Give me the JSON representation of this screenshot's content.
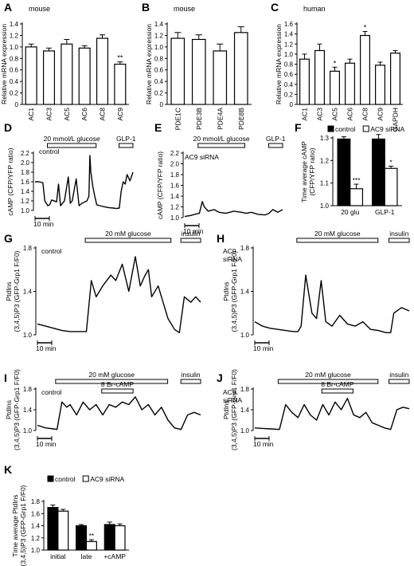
{
  "panels": [
    {
      "id": "A",
      "type": "bar",
      "title": "mouse",
      "ylabel": "Relative mRNA expression",
      "ylim": [
        0,
        1.4
      ],
      "yticks": [
        "0",
        "0.2",
        "0.4",
        "0.6",
        "0.8",
        "1.0",
        "1.2",
        "1.4"
      ],
      "categories": [
        "AC1",
        "AC3",
        "AC5",
        "AC6",
        "AC8",
        "AC9"
      ],
      "values": [
        1.0,
        0.93,
        1.05,
        0.98,
        1.15,
        0.7
      ],
      "errors": [
        0.05,
        0.05,
        0.08,
        0.04,
        0.06,
        0.04
      ],
      "stars": [
        "",
        "",
        "",
        "",
        "",
        "**"
      ]
    },
    {
      "id": "B",
      "type": "bar",
      "title": "mouse",
      "ylabel": "Relative mRNA expression",
      "ylim": [
        0,
        1.4
      ],
      "yticks": [
        "0",
        "0.2",
        "0.4",
        "0.6",
        "0.8",
        "1.0",
        "1.2",
        "1.4"
      ],
      "categories": [
        "PDE1C",
        "PDE3B",
        "PDE4A",
        "PDE8B"
      ],
      "values": [
        1.15,
        1.13,
        0.93,
        1.25
      ],
      "errors": [
        0.1,
        0.08,
        0.12,
        0.1
      ],
      "stars": [
        "",
        "",
        "",
        ""
      ]
    },
    {
      "id": "C",
      "type": "bar",
      "title": "human",
      "ylabel": "Relative mRNA expression",
      "ylim": [
        0,
        1.6
      ],
      "yticks": [
        "0",
        "0.2",
        "0.4",
        "0.6",
        "0.8",
        "1.0",
        "1.2",
        "1.4",
        "1.6"
      ],
      "categories": [
        "AC1",
        "AC3",
        "AC5",
        "AC6",
        "AC8",
        "AC9",
        "GAPDH"
      ],
      "values": [
        0.9,
        1.07,
        0.66,
        0.82,
        1.37,
        0.78,
        1.02
      ],
      "errors": [
        0.1,
        0.13,
        0.08,
        0.08,
        0.08,
        0.06,
        0.05
      ],
      "stars": [
        "",
        "",
        "*",
        "",
        "*",
        "",
        ""
      ]
    },
    {
      "id": "D",
      "type": "line",
      "ylabel": "cAMP (CFP/YFP ratio)",
      "ylim": [
        1.0,
        2.2
      ],
      "yticks": [
        "1.0",
        "1.2",
        "1.4",
        "1.6",
        "1.8",
        "2.0",
        "2.2"
      ],
      "label": "control",
      "scale": "10 min",
      "stimuli": [
        {
          "label": "20 mmol/L glucose",
          "from": 0.14,
          "to": 0.63
        },
        {
          "label": "GLP-1",
          "from": 0.86,
          "to": 1.0
        }
      ],
      "x": [
        0,
        0.04,
        0.08,
        0.1,
        0.13,
        0.15,
        0.17,
        0.22,
        0.24,
        0.26,
        0.3,
        0.34,
        0.36,
        0.38,
        0.42,
        0.45,
        0.48,
        0.53,
        0.55,
        0.56,
        0.57,
        0.59,
        0.61,
        0.63,
        0.66,
        0.7,
        0.75,
        0.8,
        0.83,
        0.86,
        0.88,
        0.9,
        0.92,
        0.94,
        0.97,
        1.0
      ],
      "y": [
        1.6,
        1.6,
        1.58,
        1.2,
        1.1,
        1.12,
        1.22,
        1.18,
        1.55,
        1.1,
        1.2,
        1.7,
        1.15,
        1.2,
        1.66,
        1.1,
        1.15,
        1.2,
        1.3,
        2.15,
        1.8,
        1.5,
        1.3,
        1.12,
        1.1,
        1.08,
        1.06,
        1.05,
        1.04,
        1.05,
        1.4,
        1.6,
        1.55,
        1.75,
        1.62,
        1.8
      ]
    },
    {
      "id": "E",
      "type": "line",
      "ylabel": "cAMP (CFP/YFP ratio)",
      "ylim": [
        1.0,
        2.2
      ],
      "yticks": [
        "1.0",
        "1.2",
        "1.4",
        "1.6",
        "1.8",
        "2.0",
        "2.2"
      ],
      "label": "AC9 siRNA",
      "scale": "10 min",
      "stimuli": [
        {
          "label": "20 mmol/L glucose",
          "from": 0.15,
          "to": 0.62
        },
        {
          "label": "GLP-1",
          "from": 0.86,
          "to": 1.0
        }
      ],
      "x": [
        0,
        0.06,
        0.1,
        0.15,
        0.18,
        0.2,
        0.24,
        0.3,
        0.35,
        0.42,
        0.5,
        0.58,
        0.63,
        0.68,
        0.75,
        0.82,
        0.86,
        0.9,
        0.95,
        1.0
      ],
      "y": [
        1.02,
        1.04,
        1.06,
        1.08,
        1.3,
        1.2,
        1.12,
        1.15,
        1.1,
        1.08,
        1.12,
        1.1,
        1.08,
        1.1,
        1.06,
        1.05,
        1.08,
        1.15,
        1.1,
        1.15
      ]
    },
    {
      "id": "F",
      "type": "bar",
      "ylabel": "Time average cAMP (CFP/YFP ratio)",
      "ylim": [
        1.0,
        1.3
      ],
      "yticks": [
        "1.0",
        "1.1",
        "1.2",
        "1.3"
      ],
      "categories": [
        "20 glu",
        "GLP-1"
      ],
      "series": [
        {
          "name": "control",
          "values": [
            1.295,
            1.295
          ],
          "errors": [
            0.01,
            0.02
          ],
          "stars": [
            "",
            ""
          ]
        },
        {
          "name": "AC9 siRNA",
          "values": [
            1.075,
            1.165
          ],
          "errors": [
            0.02,
            0.01
          ],
          "stars": [
            "***",
            "*"
          ]
        }
      ]
    },
    {
      "id": "G",
      "type": "line",
      "ylabel": "PtdIns(3,4,5)P3 (GFP-Grp1 F/F0)",
      "ylim": [
        1.0,
        1.8
      ],
      "yticks": [
        "1.0",
        "1.4",
        "1.8"
      ],
      "label": "control",
      "scale": "10 min",
      "stimuli": [
        {
          "label": "20 mM glucose",
          "from": 0.3,
          "to": 0.82
        },
        {
          "label": "insulin",
          "from": 0.88,
          "to": 1.0
        }
      ],
      "x": [
        0,
        0.05,
        0.1,
        0.15,
        0.2,
        0.25,
        0.3,
        0.33,
        0.36,
        0.4,
        0.45,
        0.48,
        0.52,
        0.56,
        0.6,
        0.63,
        0.66,
        0.68,
        0.7,
        0.74,
        0.77,
        0.8,
        0.84,
        0.87,
        0.9,
        0.94,
        0.97,
        1.0
      ],
      "y": [
        1.1,
        1.08,
        1.06,
        1.04,
        1.03,
        1.03,
        1.03,
        1.5,
        1.35,
        1.45,
        1.55,
        1.5,
        1.65,
        1.4,
        1.72,
        1.45,
        1.55,
        1.6,
        1.35,
        1.45,
        1.3,
        1.15,
        1.05,
        1.02,
        1.35,
        1.3,
        1.35,
        1.3
      ]
    },
    {
      "id": "H",
      "type": "line",
      "ylabel": "PtdIns(3,4,5)P3 (GFP-Grp1 F/F0)",
      "ylim": [
        1.0,
        1.8
      ],
      "yticks": [
        "1.0",
        "1.4",
        "1.8"
      ],
      "label": "AC9 siRNA",
      "scale": "10 min",
      "stimuli": [
        {
          "label": "20 mM glucose",
          "from": 0.28,
          "to": 0.8
        },
        {
          "label": "insulin",
          "from": 0.87,
          "to": 1.0
        }
      ],
      "x": [
        0,
        0.05,
        0.1,
        0.15,
        0.2,
        0.25,
        0.28,
        0.3,
        0.33,
        0.37,
        0.4,
        0.43,
        0.46,
        0.5,
        0.55,
        0.6,
        0.65,
        0.7,
        0.75,
        0.8,
        0.85,
        0.88,
        0.9,
        0.95,
        1.0
      ],
      "y": [
        1.12,
        1.08,
        1.06,
        1.05,
        1.04,
        1.03,
        1.03,
        1.08,
        1.55,
        1.2,
        1.15,
        1.5,
        1.12,
        1.08,
        1.18,
        1.1,
        1.08,
        1.12,
        1.05,
        1.04,
        1.02,
        1.02,
        1.2,
        1.25,
        1.22
      ]
    },
    {
      "id": "I",
      "type": "line",
      "ylabel": "PtdIns(3,4,5)P3 (GFP-Grp1 F/F0)",
      "ylim": [
        1.0,
        1.8
      ],
      "yticks": [
        "1.0",
        "1.4",
        "1.8"
      ],
      "label": "control",
      "scale": "10 min",
      "stimuli": [
        {
          "label": "20 mM glucose",
          "from": 0.12,
          "to": 0.8
        },
        {
          "label": "8 Br-cAMP",
          "from": 0.4,
          "to": 0.59
        },
        {
          "label": "insulin",
          "from": 0.88,
          "to": 1.0
        }
      ],
      "x": [
        0,
        0.05,
        0.1,
        0.12,
        0.15,
        0.18,
        0.2,
        0.24,
        0.28,
        0.32,
        0.36,
        0.4,
        0.44,
        0.48,
        0.52,
        0.56,
        0.6,
        0.64,
        0.68,
        0.72,
        0.76,
        0.8,
        0.84,
        0.88,
        0.92,
        0.96,
        1.0
      ],
      "y": [
        1.1,
        1.05,
        1.03,
        1.02,
        1.55,
        1.45,
        1.5,
        1.3,
        1.55,
        1.4,
        1.5,
        1.3,
        1.5,
        1.45,
        1.55,
        1.5,
        1.65,
        1.4,
        1.5,
        1.3,
        1.45,
        1.2,
        1.05,
        1.02,
        1.3,
        1.35,
        1.3
      ]
    },
    {
      "id": "J",
      "type": "line",
      "ylabel": "PtdIns(3,4,5)P3 (GFP-Grp1 F/F0)",
      "ylim": [
        1.0,
        1.8
      ],
      "yticks": [
        "1.0",
        "1.4",
        "1.8"
      ],
      "label": "AC9 siRNA",
      "scale": "10 min",
      "stimuli": [
        {
          "label": "20 mM glucose",
          "from": 0.16,
          "to": 0.8
        },
        {
          "label": "8 Br-cAMP",
          "from": 0.44,
          "to": 0.64
        },
        {
          "label": "insulin",
          "from": 0.87,
          "to": 1.0
        }
      ],
      "x": [
        0,
        0.05,
        0.1,
        0.16,
        0.2,
        0.24,
        0.28,
        0.32,
        0.36,
        0.4,
        0.44,
        0.48,
        0.52,
        0.56,
        0.6,
        0.64,
        0.68,
        0.72,
        0.76,
        0.8,
        0.84,
        0.88,
        0.92,
        0.96,
        1.0
      ],
      "y": [
        1.05,
        1.04,
        1.03,
        1.02,
        1.5,
        1.35,
        1.25,
        1.5,
        1.3,
        1.2,
        1.5,
        1.3,
        1.55,
        1.4,
        1.62,
        1.3,
        1.25,
        1.35,
        1.15,
        1.1,
        1.05,
        1.02,
        1.4,
        1.45,
        1.42
      ]
    },
    {
      "id": "K",
      "type": "bar",
      "ylabel": "Time average PtdIns(3,4,5)P3 (GFP-Grp1 F/F0)",
      "ylim": [
        1.0,
        1.8
      ],
      "yticks": [
        "1.0",
        "1.2",
        "1.4",
        "1.6",
        "1.8"
      ],
      "categories": [
        "initial",
        "late",
        "+cAMP"
      ],
      "series": [
        {
          "name": "control",
          "values": [
            1.7,
            1.4,
            1.42
          ],
          "errors": [
            0.04,
            0.02,
            0.04
          ],
          "stars": [
            "",
            "",
            ""
          ]
        },
        {
          "name": "AC9 siRNA",
          "values": [
            1.64,
            1.14,
            1.4
          ],
          "errors": [
            0.03,
            0.03,
            0.03
          ],
          "stars": [
            "",
            "**",
            ""
          ]
        }
      ]
    }
  ]
}
